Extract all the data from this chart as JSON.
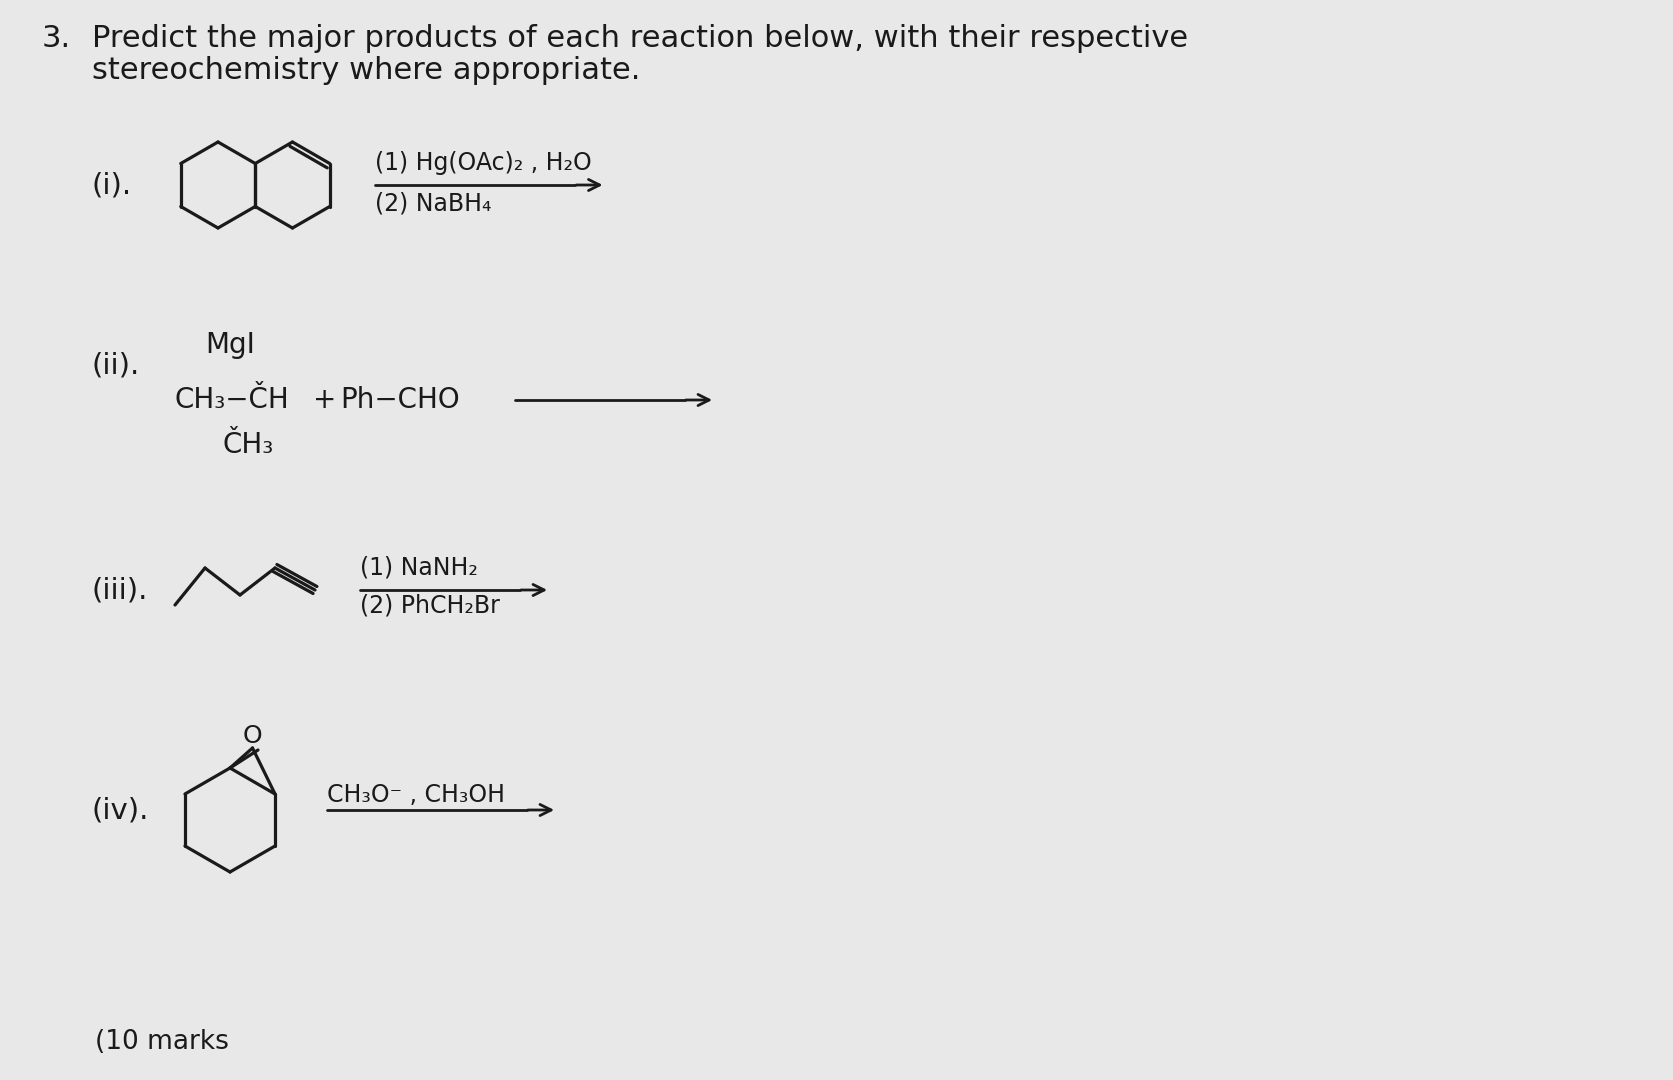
{
  "bg_color": "#e8e8e8",
  "text_color": "#1a1a1a",
  "title_number": "3.",
  "title_line1": "Predict the major products of each reaction below, with their respective",
  "title_line2": "stereochemistry where appropriate.",
  "reactions": [
    {
      "label": "(i).",
      "reagent_line1": "(1) Hg(OAc)₂ , H₂O",
      "reagent_line2": "(2) NaBH₄"
    },
    {
      "label": "(ii).",
      "reagent_line1": "MgI",
      "reagent_line2": "CH₃−ČH   +   Ph−CHO",
      "reagent_line3": "ČH₃"
    },
    {
      "label": "(iii).",
      "reagent_line1": "(1) NaNH₂",
      "reagent_line2": "(2) PhCH₂Br"
    },
    {
      "label": "(iv).",
      "reagent_line1": "CH₃O⁻ , CH₃OH"
    }
  ],
  "bottom_note": "(10 marks"
}
